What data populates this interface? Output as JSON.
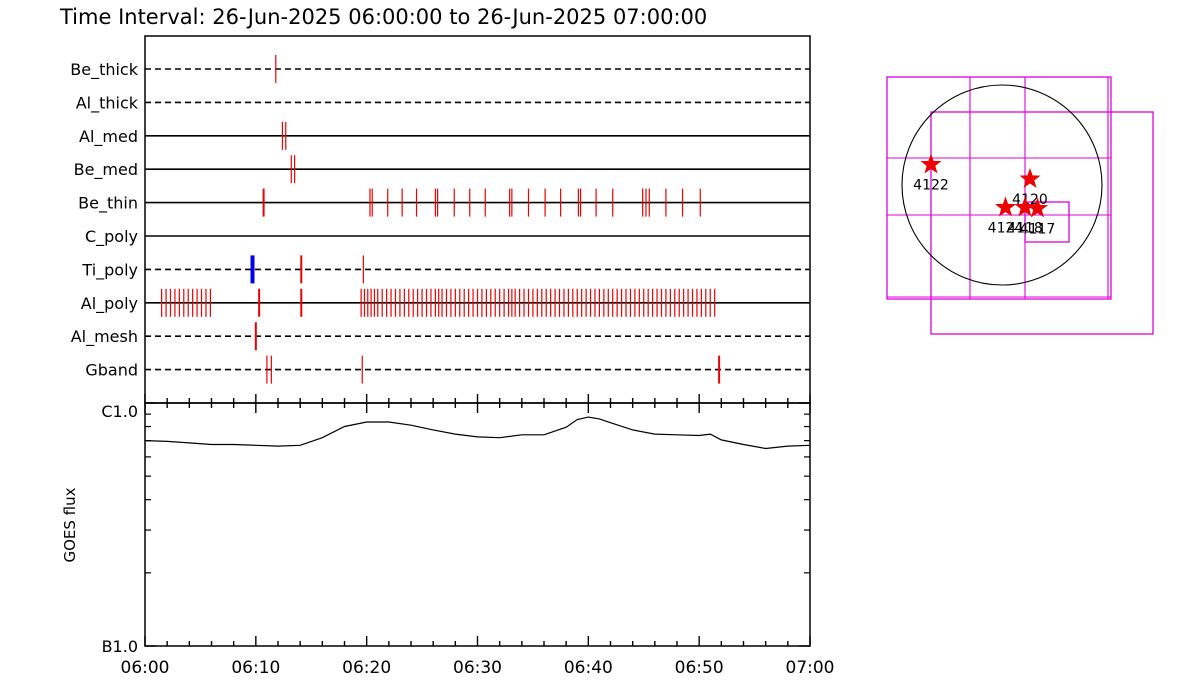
{
  "title": "Time Interval: 26-Jun-2025 06:00:00 to 26-Jun-2025 07:00:00",
  "colors": {
    "exposure": "#ee0000",
    "highlight": "#0000ee",
    "box": "#dd00dd",
    "star": "#ee0000"
  },
  "chart_data": [
    {
      "type": "timeline",
      "x_range": [
        "06:00",
        "07:00"
      ],
      "rows": [
        {
          "name": "Be_thick",
          "style": "dashed",
          "marks": [
            {
              "t": 11.8,
              "w": 1
            }
          ]
        },
        {
          "name": "Al_thick",
          "style": "dashed",
          "marks": []
        },
        {
          "name": "Al_med",
          "style": "solid",
          "marks": [
            {
              "t": 12.4,
              "w": 1
            },
            {
              "t": 12.7,
              "w": 1
            }
          ]
        },
        {
          "name": "Be_med",
          "style": "solid",
          "marks": [
            {
              "t": 13.2,
              "w": 1
            },
            {
              "t": 13.5,
              "w": 1
            }
          ]
        },
        {
          "name": "Be_thin",
          "style": "solid",
          "marks": [
            {
              "t": 10.7,
              "w": 2
            },
            {
              "t": 20.3,
              "w": 1
            },
            {
              "t": 20.5,
              "w": 1
            },
            {
              "t": 21.9,
              "w": 1
            },
            {
              "t": 23.2,
              "w": 1
            },
            {
              "t": 24.5,
              "w": 1
            },
            {
              "t": 26.2,
              "w": 1
            },
            {
              "t": 26.4,
              "w": 1
            },
            {
              "t": 27.9,
              "w": 1
            },
            {
              "t": 29.3,
              "w": 1
            },
            {
              "t": 30.7,
              "w": 1
            },
            {
              "t": 32.9,
              "w": 1
            },
            {
              "t": 33.1,
              "w": 1
            },
            {
              "t": 34.6,
              "w": 1
            },
            {
              "t": 36.1,
              "w": 1
            },
            {
              "t": 37.5,
              "w": 1
            },
            {
              "t": 39.1,
              "w": 1
            },
            {
              "t": 39.3,
              "w": 1
            },
            {
              "t": 40.7,
              "w": 1
            },
            {
              "t": 42.2,
              "w": 1
            },
            {
              "t": 44.9,
              "w": 1
            },
            {
              "t": 45.2,
              "w": 1
            },
            {
              "t": 45.5,
              "w": 1
            },
            {
              "t": 47.0,
              "w": 1
            },
            {
              "t": 48.5,
              "w": 1
            },
            {
              "t": 50.1,
              "w": 1
            }
          ]
        },
        {
          "name": "C_poly",
          "style": "solid",
          "marks": []
        },
        {
          "name": "Ti_poly",
          "style": "dashed",
          "marks": [
            {
              "t": 9.7,
              "w": 4,
              "color": "highlight"
            },
            {
              "t": 14.1,
              "w": 2
            },
            {
              "t": 19.7,
              "w": 1
            }
          ]
        },
        {
          "name": "Al_poly",
          "style": "solid",
          "marks": [
            {
              "t": 1.5,
              "w": 1
            },
            {
              "t": 1.9,
              "w": 1
            },
            {
              "t": 2.3,
              "w": 1
            },
            {
              "t": 2.7,
              "w": 1
            },
            {
              "t": 3.1,
              "w": 1
            },
            {
              "t": 3.5,
              "w": 1
            },
            {
              "t": 3.9,
              "w": 1
            },
            {
              "t": 4.3,
              "w": 1
            },
            {
              "t": 4.7,
              "w": 1
            },
            {
              "t": 5.1,
              "w": 1
            },
            {
              "t": 5.5,
              "w": 1
            },
            {
              "t": 5.9,
              "w": 1
            },
            {
              "t": 10.3,
              "w": 2
            },
            {
              "t": 14.1,
              "w": 2
            },
            {
              "t": 19.5,
              "w": 1
            },
            {
              "t": 19.8,
              "w": 1
            },
            {
              "t": 20.1,
              "w": 1
            },
            {
              "t": 20.4,
              "w": 1
            },
            {
              "t": 20.7,
              "w": 1
            },
            {
              "t": 21.0,
              "w": 1
            },
            {
              "t": 21.4,
              "w": 1
            },
            {
              "t": 21.8,
              "w": 1
            },
            {
              "t": 22.2,
              "w": 1
            },
            {
              "t": 22.6,
              "w": 1
            },
            {
              "t": 23.0,
              "w": 1
            },
            {
              "t": 23.4,
              "w": 1
            },
            {
              "t": 23.8,
              "w": 1
            },
            {
              "t": 24.2,
              "w": 1
            },
            {
              "t": 24.6,
              "w": 1
            },
            {
              "t": 25.0,
              "w": 1
            },
            {
              "t": 25.4,
              "w": 1
            },
            {
              "t": 25.8,
              "w": 1
            },
            {
              "t": 26.2,
              "w": 1
            },
            {
              "t": 26.5,
              "w": 1
            },
            {
              "t": 26.8,
              "w": 1
            },
            {
              "t": 27.2,
              "w": 1
            },
            {
              "t": 27.6,
              "w": 1
            },
            {
              "t": 28.0,
              "w": 1
            },
            {
              "t": 28.4,
              "w": 1
            },
            {
              "t": 28.8,
              "w": 1
            },
            {
              "t": 29.2,
              "w": 1
            },
            {
              "t": 29.6,
              "w": 1
            },
            {
              "t": 30.0,
              "w": 1
            },
            {
              "t": 30.4,
              "w": 1
            },
            {
              "t": 30.8,
              "w": 1
            },
            {
              "t": 31.2,
              "w": 1
            },
            {
              "t": 31.6,
              "w": 1
            },
            {
              "t": 32.0,
              "w": 1
            },
            {
              "t": 32.4,
              "w": 1
            },
            {
              "t": 32.8,
              "w": 1
            },
            {
              "t": 33.1,
              "w": 1
            },
            {
              "t": 33.4,
              "w": 1
            },
            {
              "t": 33.8,
              "w": 1
            },
            {
              "t": 34.2,
              "w": 1
            },
            {
              "t": 34.6,
              "w": 1
            },
            {
              "t": 35.0,
              "w": 1
            },
            {
              "t": 35.4,
              "w": 1
            },
            {
              "t": 35.8,
              "w": 1
            },
            {
              "t": 36.2,
              "w": 1
            },
            {
              "t": 36.6,
              "w": 1
            },
            {
              "t": 37.0,
              "w": 1
            },
            {
              "t": 37.4,
              "w": 1
            },
            {
              "t": 37.8,
              "w": 1
            },
            {
              "t": 38.2,
              "w": 1
            },
            {
              "t": 38.6,
              "w": 1
            },
            {
              "t": 39.0,
              "w": 1
            },
            {
              "t": 39.4,
              "w": 1
            },
            {
              "t": 39.8,
              "w": 1
            },
            {
              "t": 40.2,
              "w": 1
            },
            {
              "t": 40.6,
              "w": 1
            },
            {
              "t": 41.0,
              "w": 1
            },
            {
              "t": 41.4,
              "w": 1
            },
            {
              "t": 41.8,
              "w": 1
            },
            {
              "t": 42.2,
              "w": 1
            },
            {
              "t": 42.6,
              "w": 1
            },
            {
              "t": 43.0,
              "w": 1
            },
            {
              "t": 43.4,
              "w": 1
            },
            {
              "t": 43.8,
              "w": 1
            },
            {
              "t": 44.2,
              "w": 1
            },
            {
              "t": 44.6,
              "w": 1
            },
            {
              "t": 45.0,
              "w": 1
            },
            {
              "t": 45.4,
              "w": 1
            },
            {
              "t": 45.8,
              "w": 1
            },
            {
              "t": 46.2,
              "w": 1
            },
            {
              "t": 46.6,
              "w": 1
            },
            {
              "t": 47.0,
              "w": 1
            },
            {
              "t": 47.4,
              "w": 1
            },
            {
              "t": 47.8,
              "w": 1
            },
            {
              "t": 48.2,
              "w": 1
            },
            {
              "t": 48.6,
              "w": 1
            },
            {
              "t": 49.0,
              "w": 1
            },
            {
              "t": 49.4,
              "w": 1
            },
            {
              "t": 49.8,
              "w": 1
            },
            {
              "t": 50.2,
              "w": 1
            },
            {
              "t": 50.6,
              "w": 1
            },
            {
              "t": 51.0,
              "w": 1
            },
            {
              "t": 51.4,
              "w": 1
            }
          ]
        },
        {
          "name": "Al_mesh",
          "style": "dashed",
          "marks": [
            {
              "t": 10.0,
              "w": 2
            }
          ]
        },
        {
          "name": "Gband",
          "style": "dashed",
          "marks": [
            {
              "t": 11.0,
              "w": 1
            },
            {
              "t": 11.4,
              "w": 1
            },
            {
              "t": 19.6,
              "w": 1
            },
            {
              "t": 51.8,
              "w": 2
            }
          ]
        }
      ]
    },
    {
      "type": "line",
      "ylabel": "GOES flux",
      "y_ticks": [
        "C1.0",
        "B1.0"
      ],
      "ylim": [
        1.0,
        10.0
      ],
      "y_scale": "log",
      "x_ticks": [
        "06:00",
        "06:10",
        "06:20",
        "06:30",
        "06:40",
        "06:50",
        "07:00"
      ],
      "xlim": [
        0,
        60
      ],
      "series": [
        {
          "x": [
            0,
            2,
            4,
            6,
            8,
            10,
            12,
            14,
            16,
            18,
            20,
            22,
            24,
            26,
            28,
            30,
            32,
            34,
            36,
            38,
            39,
            40,
            41,
            42,
            44,
            46,
            48,
            50,
            51,
            52,
            54,
            56,
            58,
            60
          ],
          "y": [
            7.0,
            6.95,
            6.85,
            6.75,
            6.75,
            6.7,
            6.65,
            6.7,
            7.2,
            8.0,
            8.35,
            8.35,
            8.1,
            7.75,
            7.45,
            7.25,
            7.2,
            7.4,
            7.4,
            7.95,
            8.55,
            8.75,
            8.6,
            8.3,
            7.75,
            7.45,
            7.4,
            7.35,
            7.45,
            7.05,
            6.75,
            6.5,
            6.65,
            6.7
          ]
        }
      ]
    },
    {
      "type": "map",
      "labels": [
        {
          "text": "4122",
          "cx": -710,
          "cy": 205
        },
        {
          "text": "4120",
          "cx": 280,
          "cy": 60
        },
        {
          "text": "4124",
          "cx": 35,
          "cy": -225
        },
        {
          "text": "4118",
          "cx": 230,
          "cy": -225
        },
        {
          "text": "4117",
          "cx": 355,
          "cy": -235
        }
      ]
    }
  ]
}
